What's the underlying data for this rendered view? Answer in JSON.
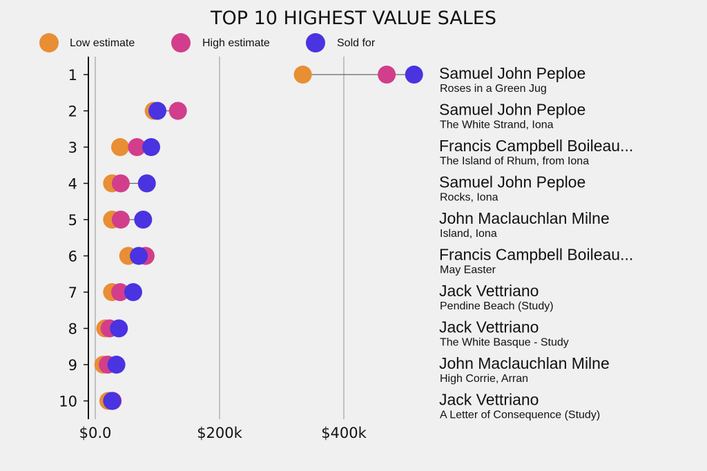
{
  "chart_data": {
    "type": "scatter",
    "subtype": "dumbbell",
    "title": "TOP 10 HIGHEST VALUE SALES",
    "xlabel": "",
    "ylabel": "",
    "xlim": [
      0,
      560
    ],
    "x_unit": "$k",
    "x_ticks": [
      {
        "value": 0,
        "label": "$0.0"
      },
      {
        "value": 200,
        "label": "$200k"
      },
      {
        "value": 400,
        "label": "$400k"
      }
    ],
    "grid": "vertical",
    "legend_position": "top-left",
    "series": [
      {
        "name": "Low estimate",
        "color": "#e88e34"
      },
      {
        "name": "High estimate",
        "color": "#d23e8b"
      },
      {
        "name": "Sold for",
        "color": "#4a33e0"
      }
    ],
    "categories": [
      "1",
      "2",
      "3",
      "4",
      "5",
      "6",
      "7",
      "8",
      "9",
      "10"
    ],
    "rows": [
      {
        "rank": "1",
        "artist": "Samuel John Peploe",
        "painting": "Roses in a Green Jug",
        "low": 334,
        "high": 469,
        "sold": 513
      },
      {
        "rank": "2",
        "artist": "Samuel John Peploe",
        "painting": "The White Strand, Iona",
        "low": 94,
        "high": 133,
        "sold": 100
      },
      {
        "rank": "3",
        "artist": "Francis Campbell Boileau...",
        "painting": "The Island of Rhum, from Iona",
        "low": 40,
        "high": 67,
        "sold": 90
      },
      {
        "rank": "4",
        "artist": "Samuel John Peploe",
        "painting": "Rocks, Iona",
        "low": 27,
        "high": 41,
        "sold": 83
      },
      {
        "rank": "5",
        "artist": "John Maclauchlan Milne",
        "painting": "Island, Iona",
        "low": 27,
        "high": 41,
        "sold": 77
      },
      {
        "rank": "6",
        "artist": "Francis Campbell Boileau...",
        "painting": "May Easter",
        "low": 53,
        "high": 81,
        "sold": 70
      },
      {
        "rank": "7",
        "artist": "Jack Vettriano",
        "painting": "Pendine Beach (Study)",
        "low": 27,
        "high": 40,
        "sold": 61
      },
      {
        "rank": "8",
        "artist": "Jack Vettriano",
        "painting": "The White Basque - Study",
        "low": 16,
        "high": 23,
        "sold": 38
      },
      {
        "rank": "9",
        "artist": "John Maclauchlan Milne",
        "painting": "High Corrie, Arran",
        "low": 13,
        "high": 20,
        "sold": 34
      },
      {
        "rank": "10",
        "artist": "Jack Vettriano",
        "painting": "A Letter of Consequence (Study)",
        "low": 21,
        "high": 28,
        "sold": 27
      }
    ]
  }
}
